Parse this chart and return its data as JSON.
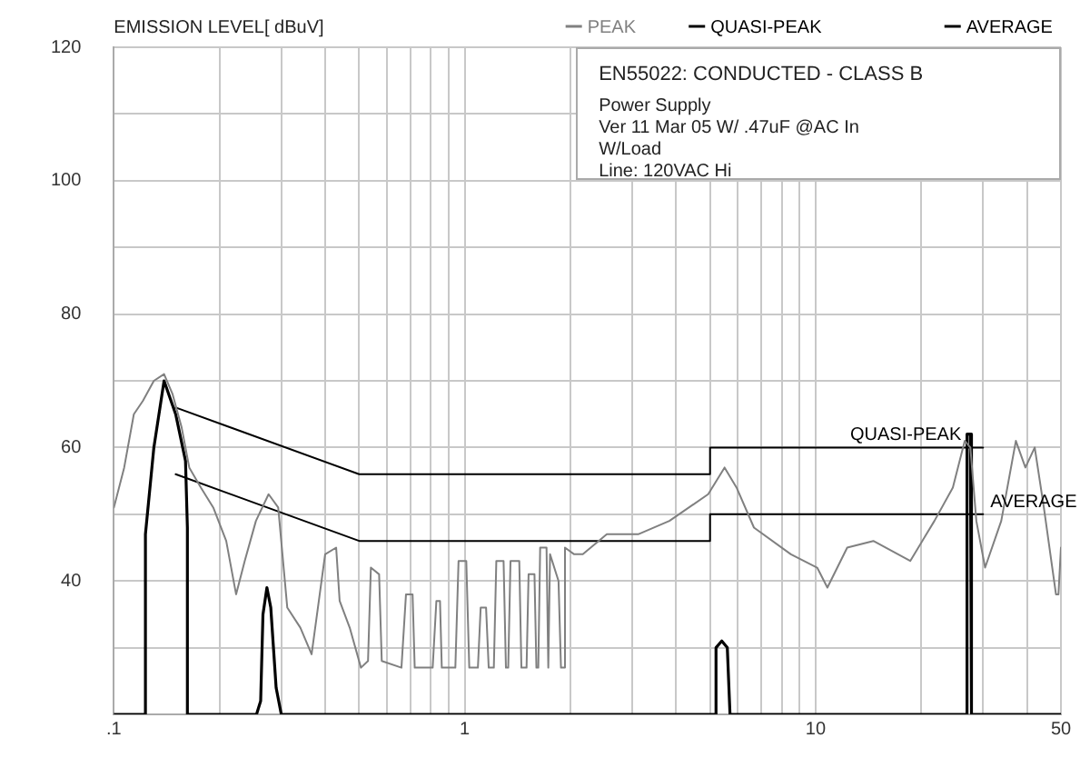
{
  "chart_data": {
    "type": "line",
    "title": "EN55022: CONDUCTED - CLASS B",
    "ylabel": "EMISSION LEVEL[ dBuV]",
    "annotations": [
      "Power Supply",
      "Ver 11 Mar 05 W/ .47uF @AC In",
      "W/Load",
      "Line: 120VAC Hi"
    ],
    "log": "x",
    "grid": true,
    "legend": "top",
    "marker": "none",
    "line_style": "solid",
    "xlim": [
      0.1,
      50
    ],
    "xticks": [
      {
        "value": 0.1,
        "label": ".1"
      },
      {
        "value": 0.2,
        "label": null
      },
      {
        "value": 0.3,
        "label": null
      },
      {
        "value": 0.4,
        "label": null
      },
      {
        "value": 0.5,
        "label": null
      },
      {
        "value": 0.6,
        "label": null
      },
      {
        "value": 0.7,
        "label": null
      },
      {
        "value": 0.8,
        "label": null
      },
      {
        "value": 0.9,
        "label": null
      },
      1,
      {
        "value": 2,
        "label": null
      },
      {
        "value": 3,
        "label": null
      },
      {
        "value": 4,
        "label": null
      },
      {
        "value": 5,
        "label": null
      },
      {
        "value": 6,
        "label": null
      },
      {
        "value": 7,
        "label": null
      },
      {
        "value": 8,
        "label": null
      },
      {
        "value": 9,
        "label": null
      },
      10,
      {
        "value": 20,
        "label": null
      },
      {
        "value": 30,
        "label": null
      },
      {
        "value": 40,
        "label": null
      },
      50
    ],
    "ylim": [
      20,
      120
    ],
    "yticks": [
      {
        "value": 20,
        "label": null
      },
      {
        "value": 30,
        "label": null
      },
      40,
      {
        "value": 50,
        "label": null
      },
      60,
      {
        "value": 70,
        "label": null
      },
      80,
      {
        "value": 90,
        "label": null
      },
      100,
      {
        "value": 110,
        "label": null
      },
      120
    ],
    "series": [
      {
        "name": "PEAK",
        "color": "#808080",
        "x": [
          0.1,
          0.107,
          0.114,
          0.121,
          0.13,
          0.139,
          0.147,
          0.156,
          0.164,
          0.177,
          0.192,
          0.209,
          0.223,
          0.236,
          0.254,
          0.276,
          0.294,
          0.312,
          0.34,
          0.366,
          0.4,
          0.43,
          0.44,
          0.47,
          0.506,
          0.53,
          0.54,
          0.57,
          0.58,
          0.66,
          0.68,
          0.71,
          0.72,
          0.81,
          0.83,
          0.85,
          0.86,
          0.94,
          0.96,
          1.01,
          1.03,
          1.09,
          1.11,
          1.15,
          1.17,
          1.21,
          1.23,
          1.29,
          1.31,
          1.33,
          1.35,
          1.43,
          1.45,
          1.5,
          1.52,
          1.58,
          1.6,
          1.62,
          1.64,
          1.71,
          1.73,
          1.75,
          1.85,
          1.88,
          1.91,
          1.93,
          2.05,
          2.17,
          2.54,
          3.12,
          3.83,
          4.94,
          5.5,
          5.95,
          6.67,
          8.5,
          10.1,
          10.8,
          12.3,
          14.6,
          18.6,
          21.8,
          24.6,
          26.6,
          27.6,
          28.7,
          30.4,
          33.8,
          37.2,
          39.6,
          42.1,
          44.7,
          48.4,
          49.2,
          50
        ],
        "values": [
          51,
          57,
          65,
          67,
          70,
          71,
          68,
          63,
          57,
          54,
          51,
          46,
          38,
          43,
          49,
          53,
          51,
          36,
          33,
          29,
          44,
          45,
          37,
          33,
          27,
          28,
          42,
          41,
          28,
          27,
          38,
          38,
          27,
          27,
          37,
          37,
          27,
          27,
          43,
          43,
          27,
          27,
          36,
          36,
          27,
          27,
          43,
          43,
          27,
          27,
          43,
          43,
          27,
          27,
          41,
          41,
          27,
          27,
          45,
          45,
          27,
          44,
          40,
          27,
          27,
          45,
          44,
          44,
          47,
          47,
          49,
          53,
          57,
          54,
          48,
          44,
          42,
          39,
          45,
          46,
          43,
          49,
          54,
          61,
          60,
          49,
          42,
          49,
          61,
          57,
          60,
          51,
          38,
          38,
          45
        ]
      },
      {
        "name": "QUASI-PEAK",
        "color": "#000000",
        "x": [
          0.15,
          0.5,
          0.5,
          5,
          5,
          30
        ],
        "values": [
          66,
          56,
          56,
          56,
          60,
          60
        ]
      },
      {
        "name": "AVERAGE",
        "color": "#000000",
        "x": [
          0.15,
          0.5,
          0.5,
          5,
          5,
          30
        ],
        "values": [
          56,
          46,
          46,
          46,
          50,
          50
        ]
      },
      {
        "color": "#000000",
        "x": [
          0.1,
          0.123,
          0.123,
          0.13,
          0.139,
          0.15,
          0.16,
          0.162,
          0.162,
          0.255,
          0.262,
          0.266,
          0.273,
          0.28,
          0.29,
          0.3,
          5.2,
          5.2,
          5.4,
          5.6,
          5.7,
          27,
          27,
          27.6,
          27.8,
          50
        ],
        "values": [
          20,
          20,
          47,
          60,
          70,
          65,
          58,
          48,
          20,
          20,
          22,
          35,
          39,
          36,
          24,
          20,
          20,
          30,
          31,
          30,
          20,
          20,
          62,
          62,
          20,
          20
        ]
      }
    ]
  }
}
